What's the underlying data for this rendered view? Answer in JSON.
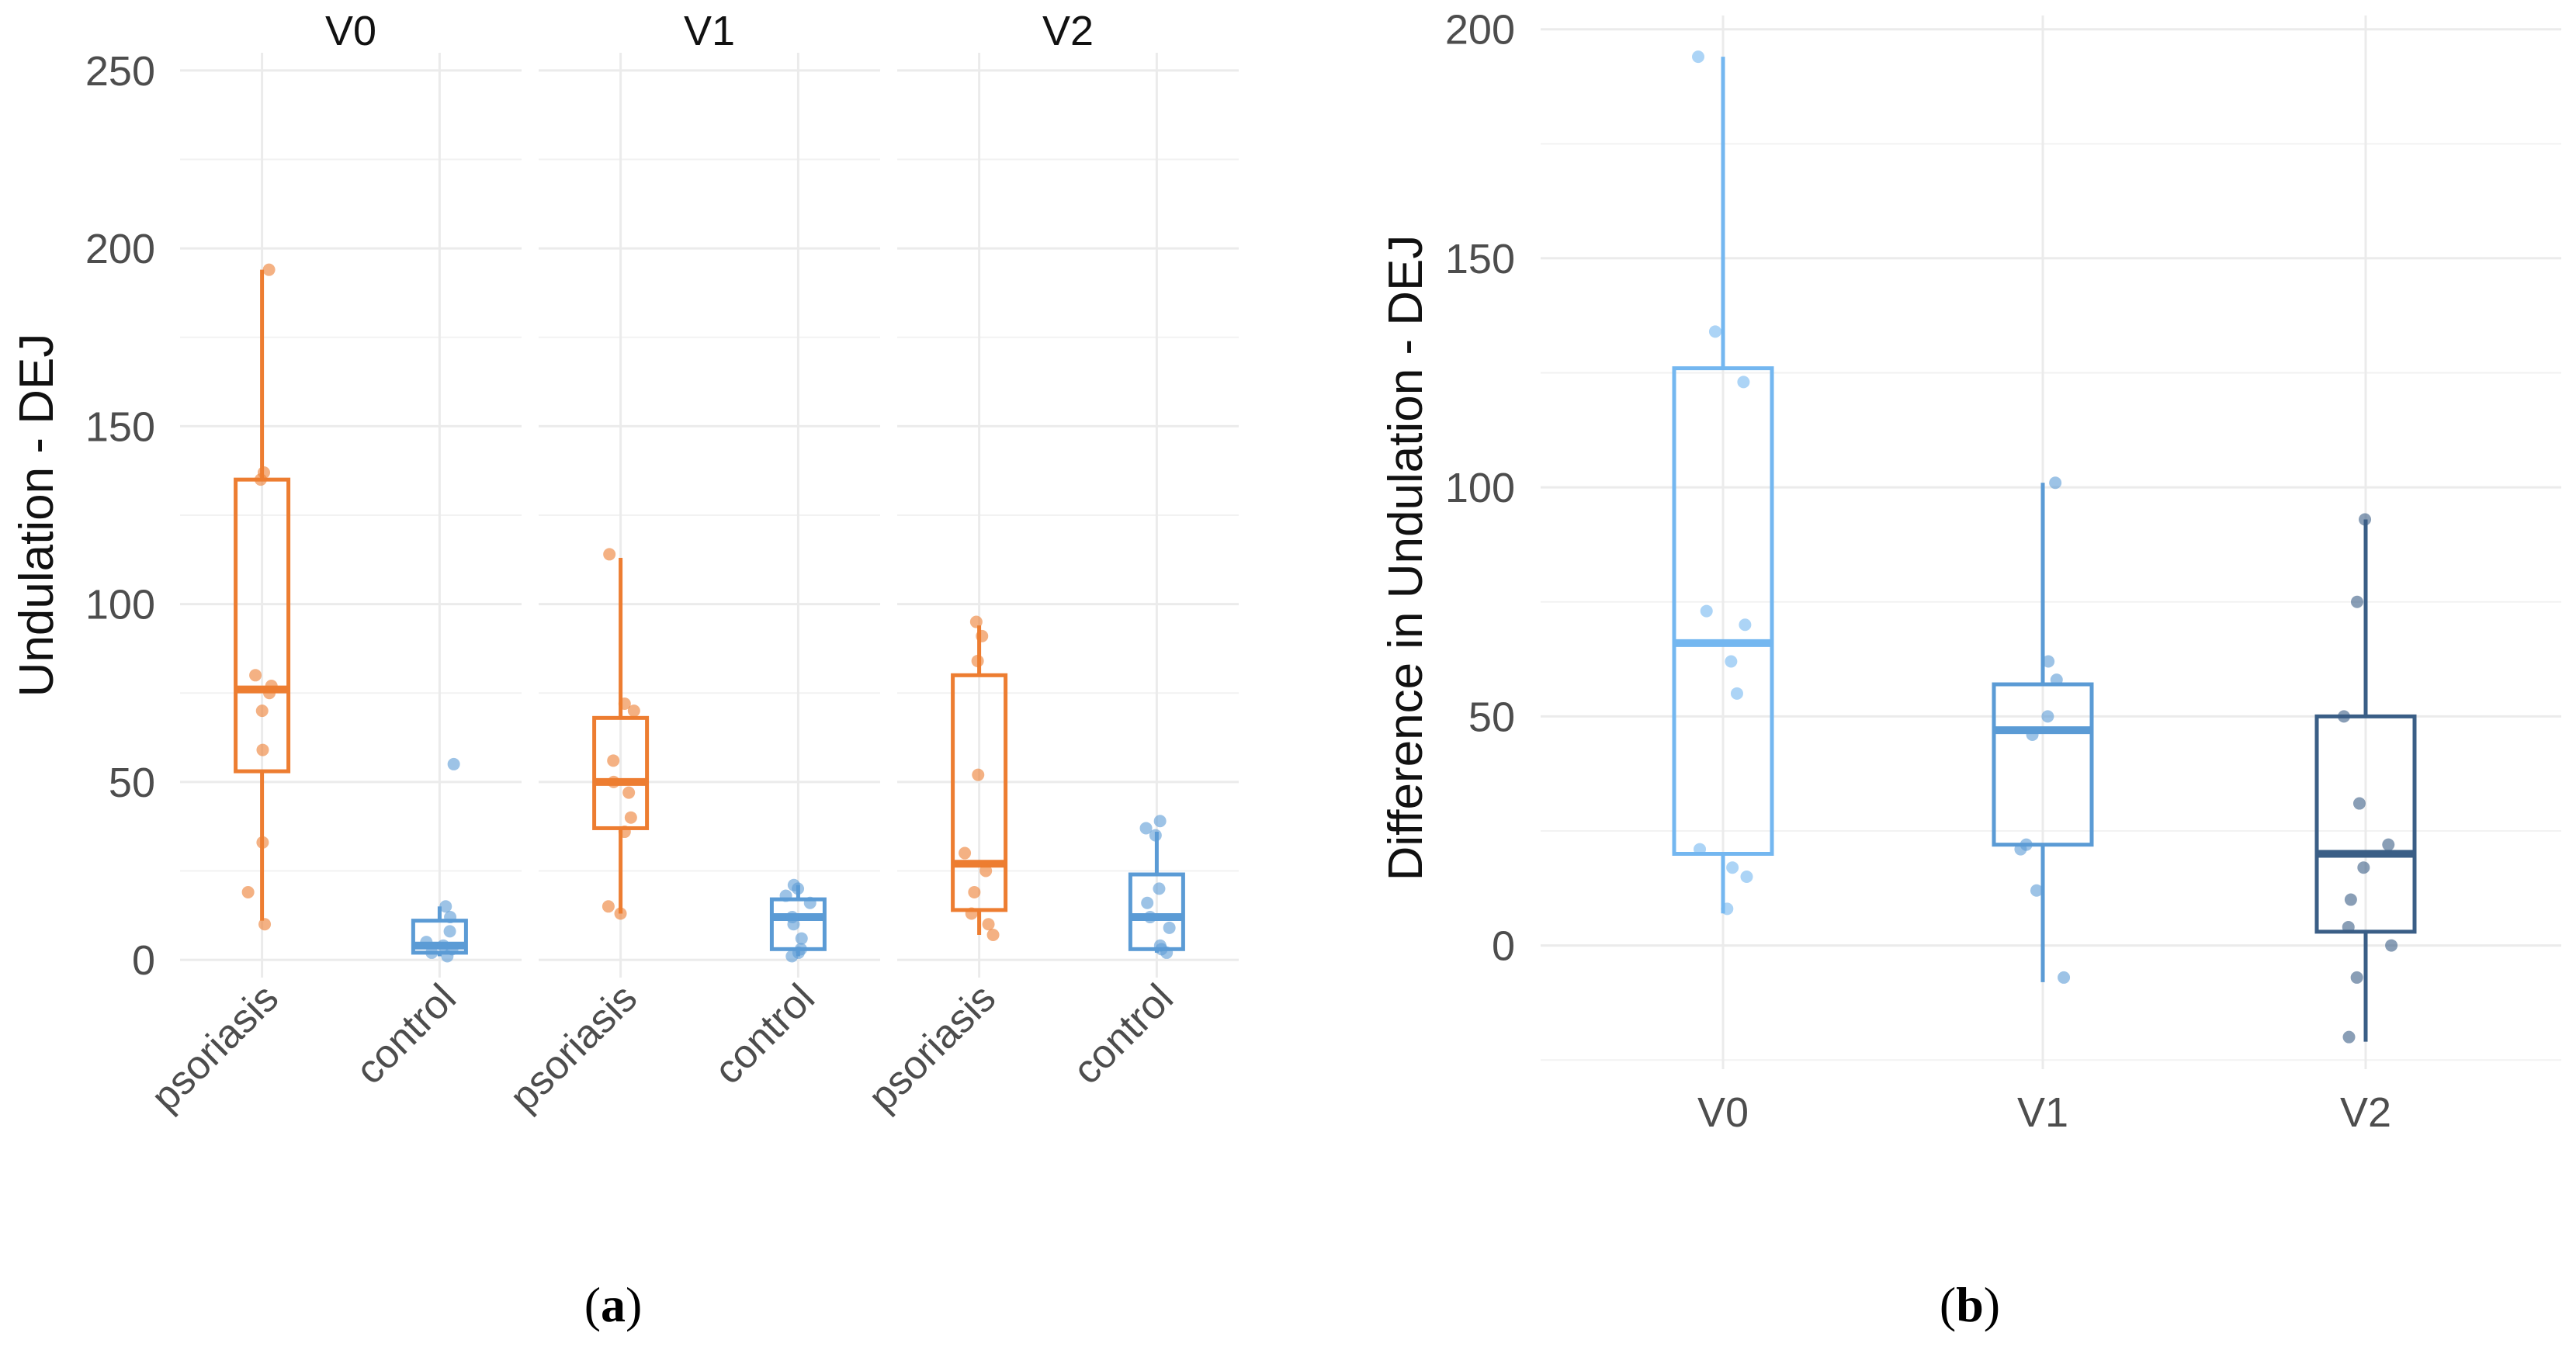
{
  "colors": {
    "psoriasis": "#ED7D31",
    "control": "#5B9BD5",
    "V0": "#74B7F0",
    "V1": "#5B9BD5",
    "V2": "#3A5E86",
    "grid": "#EBEBEB",
    "text": "#111111",
    "tick": "#4D4D4D"
  },
  "panels": {
    "a": {
      "caption_letter": "a",
      "caption_open": "(",
      "caption_close": ")"
    },
    "b": {
      "caption_letter": "b",
      "caption_open": "(",
      "caption_close": ")"
    }
  },
  "chart_data": [
    {
      "id": "a",
      "type": "boxplot",
      "title": "",
      "ylabel": "Undulation - DEJ",
      "xlabel": "",
      "ylim": [
        -5,
        255
      ],
      "yticks": [
        0,
        50,
        100,
        150,
        200,
        250
      ],
      "grid": true,
      "facets": [
        {
          "name": "V0",
          "groups": [
            {
              "name": "psoriasis",
              "color_key": "psoriasis",
              "box": {
                "lower": 11,
                "q1": 53,
                "median": 76,
                "q3": 135,
                "upper": 194
              },
              "points": [
                194,
                137,
                135,
                80,
                77,
                75,
                70,
                59,
                33,
                19,
                10
              ]
            },
            {
              "name": "control",
              "color_key": "control",
              "box": {
                "lower": 1,
                "q1": 2,
                "median": 4,
                "q3": 11,
                "upper": 15
              },
              "points": [
                55,
                15,
                12,
                8,
                5,
                4,
                3,
                2,
                1
              ]
            }
          ]
        },
        {
          "name": "V1",
          "groups": [
            {
              "name": "psoriasis",
              "color_key": "psoriasis",
              "box": {
                "lower": 13,
                "q1": 37,
                "median": 50,
                "q3": 68,
                "upper": 113
              },
              "points": [
                114,
                72,
                70,
                56,
                50,
                47,
                40,
                36,
                15,
                13
              ]
            },
            {
              "name": "control",
              "color_key": "control",
              "box": {
                "lower": 1,
                "q1": 3,
                "median": 12,
                "q3": 17,
                "upper": 21
              },
              "points": [
                21,
                20,
                18,
                16,
                12,
                10,
                6,
                3,
                2,
                1
              ]
            }
          ]
        },
        {
          "name": "V2",
          "groups": [
            {
              "name": "psoriasis",
              "color_key": "psoriasis",
              "box": {
                "lower": 7,
                "q1": 14,
                "median": 27,
                "q3": 80,
                "upper": 94
              },
              "points": [
                95,
                91,
                84,
                52,
                30,
                25,
                19,
                13,
                10,
                7
              ]
            },
            {
              "name": "control",
              "color_key": "control",
              "box": {
                "lower": 2,
                "q1": 3,
                "median": 12,
                "q3": 24,
                "upper": 36
              },
              "points": [
                39,
                37,
                35,
                20,
                16,
                12,
                9,
                4,
                3,
                2
              ]
            }
          ]
        }
      ]
    },
    {
      "id": "b",
      "type": "boxplot",
      "title": "",
      "ylabel": "Difference in Undulation - DEJ",
      "xlabel": "",
      "categories": [
        "V0",
        "V1",
        "V2"
      ],
      "ylim": [
        -27,
        203
      ],
      "yticks": [
        0,
        50,
        100,
        150,
        200
      ],
      "grid": true,
      "groups": [
        {
          "name": "V0",
          "color_key": "V0",
          "box": {
            "lower": 7,
            "q1": 20,
            "median": 66,
            "q3": 126,
            "upper": 194
          },
          "points": [
            194,
            134,
            123,
            73,
            70,
            62,
            55,
            21,
            17,
            15,
            8
          ]
        },
        {
          "name": "V1",
          "color_key": "V1",
          "box": {
            "lower": -8,
            "q1": 22,
            "median": 47,
            "q3": 57,
            "upper": 101
          },
          "points": [
            101,
            62,
            58,
            50,
            46,
            22,
            21,
            12,
            -7
          ]
        },
        {
          "name": "V2",
          "color_key": "V2",
          "box": {
            "lower": -21,
            "q1": 3,
            "median": 20,
            "q3": 50,
            "upper": 93
          },
          "points": [
            93,
            75,
            50,
            31,
            22,
            17,
            10,
            4,
            0,
            -7,
            -20
          ]
        }
      ]
    }
  ]
}
